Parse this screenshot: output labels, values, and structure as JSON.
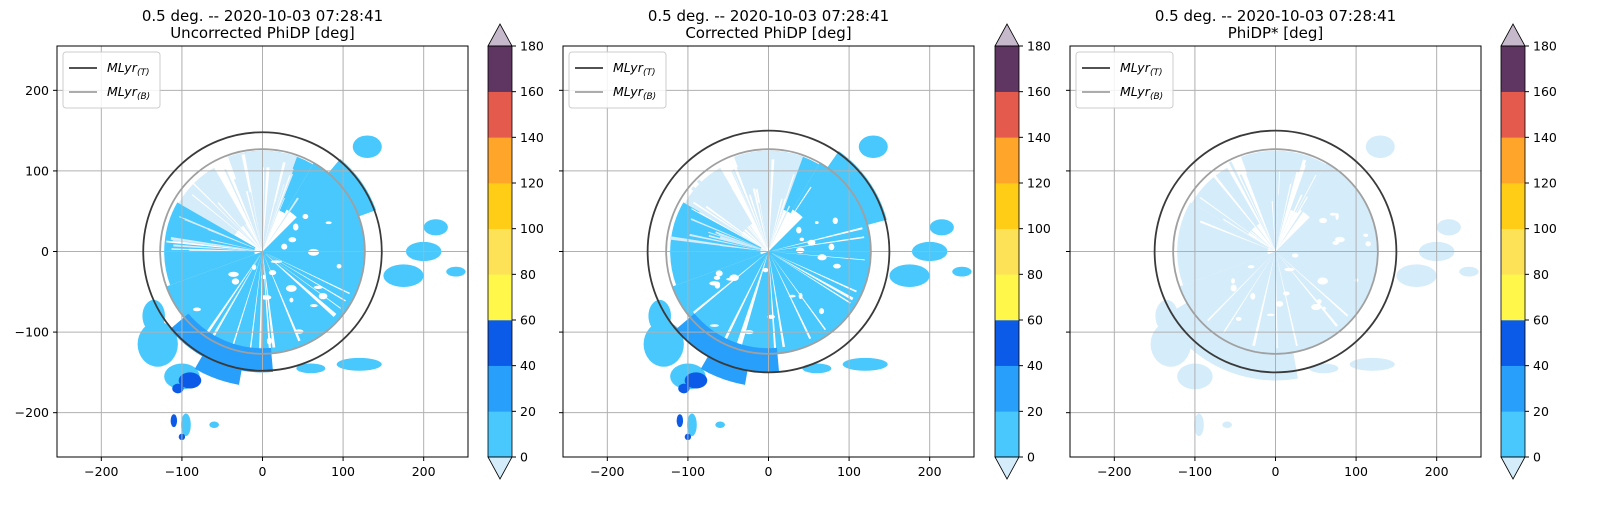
{
  "chart_data": [
    {
      "type": "heatmap",
      "title_line1": "0.5 deg. -- 2020-10-03 07:28:41",
      "title_line2": "Uncorrected PhiDP [deg]",
      "variant": "uncorrected",
      "xlim": [
        -255,
        255
      ],
      "ylim": [
        -255,
        255
      ],
      "xticks": [
        -200,
        -100,
        0,
        100,
        200
      ],
      "yticks": [
        -200,
        -100,
        0,
        100,
        200
      ],
      "show_yticklabels": true,
      "grid": true,
      "legend": {
        "placement": "top-left",
        "entries": [
          {
            "name": "MLyr",
            "sub": "(T)",
            "color": "#3a3a3a"
          },
          {
            "name": "MLyr",
            "sub": "(B)",
            "color": "#a0a0a0"
          }
        ]
      },
      "ml_top_radius": 148,
      "ml_bottom_radius": 127,
      "colorbar": {
        "levels": [
          0,
          20,
          40,
          60,
          80,
          100,
          120,
          140,
          160,
          180
        ],
        "ticks": [
          "0",
          "20",
          "40",
          "60",
          "80",
          "100",
          "120",
          "140",
          "160",
          "180"
        ],
        "colors": [
          "#48c8fd",
          "#289ffb",
          "#0c5ae8",
          "#fff74a",
          "#fde258",
          "#ffcc16",
          "#ffa52a",
          "#e45a4c",
          "#5f3562"
        ],
        "under_color": "#d5ecfa",
        "over_color": "#c6b9cb",
        "extend": "both"
      }
    },
    {
      "type": "heatmap",
      "title_line1": "0.5 deg. -- 2020-10-03 07:28:41",
      "title_line2": "Corrected PhiDP [deg]",
      "variant": "corrected",
      "xlim": [
        -255,
        255
      ],
      "ylim": [
        -255,
        255
      ],
      "xticks": [
        -200,
        -100,
        0,
        100,
        200
      ],
      "yticks": [
        -200,
        -100,
        0,
        100,
        200
      ],
      "show_yticklabels": false,
      "grid": true,
      "legend": {
        "placement": "top-left",
        "entries": [
          {
            "name": "MLyr",
            "sub": "(T)",
            "color": "#3a3a3a"
          },
          {
            "name": "MLyr",
            "sub": "(B)",
            "color": "#a0a0a0"
          }
        ]
      },
      "ml_top_radius": 150,
      "ml_bottom_radius": 127,
      "colorbar": {
        "levels": [
          0,
          20,
          40,
          60,
          80,
          100,
          120,
          140,
          160,
          180
        ],
        "ticks": [
          "0",
          "20",
          "40",
          "60",
          "80",
          "100",
          "120",
          "140",
          "160",
          "180"
        ],
        "colors": [
          "#48c8fd",
          "#289ffb",
          "#0c5ae8",
          "#fff74a",
          "#fde258",
          "#ffcc16",
          "#ffa52a",
          "#e45a4c",
          "#5f3562"
        ],
        "under_color": "#d5ecfa",
        "over_color": "#c6b9cb",
        "extend": "both"
      }
    },
    {
      "type": "heatmap",
      "title_line1": "0.5 deg. -- 2020-10-03 07:28:41",
      "title_line2": "PhiDP* [deg]",
      "variant": "star",
      "xlim": [
        -255,
        255
      ],
      "ylim": [
        -255,
        255
      ],
      "xticks": [
        -200,
        -100,
        0,
        100,
        200
      ],
      "yticks": [
        -200,
        -100,
        0,
        100,
        200
      ],
      "show_yticklabels": false,
      "grid": true,
      "legend": {
        "placement": "top-left",
        "entries": [
          {
            "name": "MLyr",
            "sub": "(T)",
            "color": "#3a3a3a"
          },
          {
            "name": "MLyr",
            "sub": "(B)",
            "color": "#a0a0a0"
          }
        ]
      },
      "ml_top_radius": 150,
      "ml_bottom_radius": 127,
      "colorbar": {
        "levels": [
          0,
          20,
          40,
          60,
          80,
          100,
          120,
          140,
          160,
          180
        ],
        "ticks": [
          "0",
          "20",
          "40",
          "60",
          "80",
          "100",
          "120",
          "140",
          "160",
          "180"
        ],
        "colors": [
          "#48c8fd",
          "#289ffb",
          "#0c5ae8",
          "#fff74a",
          "#fde258",
          "#ffcc16",
          "#ffa52a",
          "#e45a4c",
          "#5f3562"
        ],
        "under_color": "#d5ecfa",
        "over_color": "#c6b9cb",
        "extend": "both"
      }
    }
  ]
}
